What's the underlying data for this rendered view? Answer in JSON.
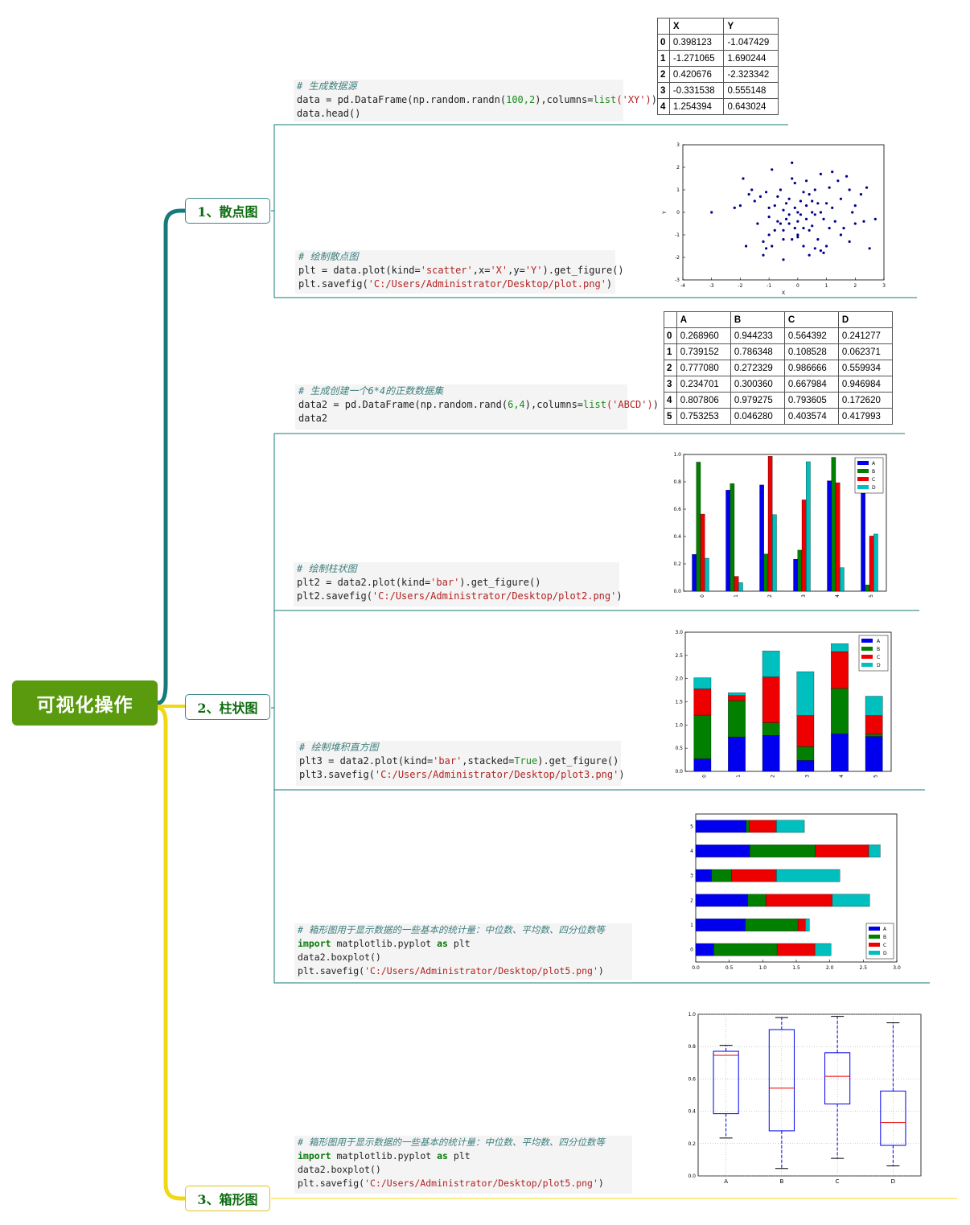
{
  "root": {
    "label": "可视化操作"
  },
  "branches": [
    {
      "label": "1、散点图"
    },
    {
      "label": "2、柱状图"
    },
    {
      "label": "3、箱形图"
    }
  ],
  "code": {
    "gen_xy": {
      "comment": "# 生成数据源",
      "line1_pre": "data = pd.DataFrame(np.random.randn(",
      "line1_n": "100,2",
      "line1_mid": "),columns=",
      "line1_kw": "list",
      "line1_s": "('XY')",
      "line1_end": ")",
      "line2": "data.head()"
    },
    "scatter": {
      "comment": "# 绘制散点图",
      "l1_pre": "plt = data.plot(kind=",
      "l1_s1": "'scatter'",
      "l1_mid1": ",x=",
      "l1_s2": "'X'",
      "l1_mid2": ",y=",
      "l1_s3": "'Y'",
      "l1_end": ").get_figure()",
      "l2_pre": "plt.savefig(",
      "l2_s": "'C:/Users/Administrator/Desktop/plot.png'",
      "l2_end": ")"
    },
    "gen_abcd": {
      "comment": "# 生成创建一个6*4的正数数据集",
      "l1_pre": "data2 = pd.DataFrame(np.random.rand(",
      "l1_n": "6,4",
      "l1_mid": "),columns=",
      "l1_kw": "list",
      "l1_s": "('ABCD')",
      "l1_end": ")",
      "l2": "data2"
    },
    "bar": {
      "comment": "# 绘制柱状图",
      "l1_pre": "plt2 = data2.plot(kind=",
      "l1_s": "'bar'",
      "l1_end": ").get_figure()",
      "l2_pre": "plt2.savefig(",
      "l2_s": "'C:/Users/Administrator/Desktop/plot2.png'",
      "l2_end": ")"
    },
    "stacked": {
      "comment": "# 绘制堆积直方图",
      "l1_pre": "plt3 = data2.plot(kind=",
      "l1_s": "'bar'",
      "l1_mid": ",stacked=",
      "l1_kw": "True",
      "l1_end": ").get_figure()",
      "l2_pre": "plt3.savefig(",
      "l2_s": "'C:/Users/Administrator/Desktop/plot3.png'",
      "l2_end": ")"
    },
    "box1": {
      "comment": "# 箱形图用于显示数据的一些基本的统计量：中位数、平均数、四分位数等",
      "l1_kw1": "import",
      "l1_mid": " matplotlib.pyplot ",
      "l1_kw2": "as",
      "l1_end": " plt",
      "l2": "data2.boxplot()",
      "l3_pre": "plt.savefig(",
      "l3_s": "'C:/Users/Administrator/Desktop/plot5.png'",
      "l3_end": ")"
    },
    "box2": {
      "comment": "# 箱形图用于显示数据的一些基本的统计量：中位数、平均数、四分位数等",
      "l1_kw1": "import",
      "l1_mid": " matplotlib.pyplot ",
      "l1_kw2": "as",
      "l1_end": " plt",
      "l2": "data2.boxplot()",
      "l3_pre": "plt.savefig(",
      "l3_s": "'C:/Users/Administrator/Desktop/plot5.png'",
      "l3_end": ")"
    }
  },
  "tables": {
    "xy": {
      "columns": [
        "X",
        "Y"
      ],
      "rows": [
        [
          "0",
          "0.398123",
          "-1.047429"
        ],
        [
          "1",
          "-1.271065",
          "1.690244"
        ],
        [
          "2",
          "0.420676",
          "-2.323342"
        ],
        [
          "3",
          "-0.331538",
          "0.555148"
        ],
        [
          "4",
          "1.254394",
          "0.643024"
        ]
      ]
    },
    "abcd": {
      "columns": [
        "A",
        "B",
        "C",
        "D"
      ],
      "rows": [
        [
          "0",
          "0.268960",
          "0.944233",
          "0.564392",
          "0.241277"
        ],
        [
          "1",
          "0.739152",
          "0.786348",
          "0.108528",
          "0.062371"
        ],
        [
          "2",
          "0.777080",
          "0.272329",
          "0.986666",
          "0.559934"
        ],
        [
          "3",
          "0.234701",
          "0.300360",
          "0.667984",
          "0.946984"
        ],
        [
          "4",
          "0.807806",
          "0.979275",
          "0.793605",
          "0.172620"
        ],
        [
          "5",
          "0.753253",
          "0.046280",
          "0.403574",
          "0.417993"
        ]
      ]
    }
  },
  "colors": {
    "A": "#0000ee",
    "B": "#007f00",
    "C": "#ee0000",
    "D": "#00bfbf",
    "teal_line": "#177a7a",
    "yellow_line": "#f0d816",
    "root_bg": "#5a9a0e"
  },
  "chart_data": [
    {
      "type": "scatter",
      "xlabel": "X",
      "ylabel": "Y",
      "xlim": [
        -4,
        3
      ],
      "ylim": [
        -3,
        3
      ],
      "xticks": [
        "-4",
        "-3",
        "-2",
        "-1",
        "0",
        "1",
        "2",
        "3"
      ],
      "yticks": [
        "-3",
        "-2",
        "-1",
        "0",
        "1",
        "2",
        "3"
      ],
      "points": [
        [
          -3.0,
          0.0
        ],
        [
          -2.2,
          0.2
        ],
        [
          -2.0,
          0.3
        ],
        [
          -1.9,
          1.5
        ],
        [
          -1.8,
          -1.5
        ],
        [
          -1.7,
          0.8
        ],
        [
          -1.6,
          1.0
        ],
        [
          -1.5,
          0.5
        ],
        [
          -1.4,
          -0.5
        ],
        [
          -1.3,
          0.7
        ],
        [
          -1.2,
          -1.3
        ],
        [
          -1.2,
          -1.9
        ],
        [
          -1.1,
          0.9
        ],
        [
          -1.1,
          -1.6
        ],
        [
          -1.0,
          -0.2
        ],
        [
          -1.0,
          0.2
        ],
        [
          -1.0,
          -1.0
        ],
        [
          -0.9,
          1.9
        ],
        [
          -0.9,
          -1.5
        ],
        [
          -0.8,
          0.3
        ],
        [
          -0.8,
          -0.8
        ],
        [
          -0.7,
          -0.4
        ],
        [
          -0.7,
          0.7
        ],
        [
          -0.6,
          -0.5
        ],
        [
          -0.6,
          1.0
        ],
        [
          -0.5,
          -0.8
        ],
        [
          -0.5,
          0.1
        ],
        [
          -0.5,
          -1.2
        ],
        [
          -0.5,
          -2.1
        ],
        [
          -0.4,
          -0.3
        ],
        [
          -0.4,
          0.4
        ],
        [
          -0.3,
          -0.1
        ],
        [
          -0.3,
          -0.5
        ],
        [
          -0.3,
          0.6
        ],
        [
          -0.2,
          1.5
        ],
        [
          -0.2,
          -1.2
        ],
        [
          -0.2,
          2.2
        ],
        [
          -0.1,
          -0.7
        ],
        [
          -0.1,
          0.2
        ],
        [
          -0.1,
          1.3
        ],
        [
          0.0,
          -1.0
        ],
        [
          0.0,
          0.0
        ],
        [
          0.0,
          -0.4
        ],
        [
          0.0,
          -1.1
        ],
        [
          0.1,
          0.5
        ],
        [
          0.1,
          -0.1
        ],
        [
          0.2,
          -0.7
        ],
        [
          0.2,
          0.9
        ],
        [
          0.2,
          -1.5
        ],
        [
          0.3,
          0.3
        ],
        [
          0.3,
          -0.3
        ],
        [
          0.3,
          1.4
        ],
        [
          0.4,
          -0.8
        ],
        [
          0.4,
          0.8
        ],
        [
          0.4,
          -1.9
        ],
        [
          0.5,
          0.0
        ],
        [
          0.5,
          0.5
        ],
        [
          0.5,
          -0.6
        ],
        [
          0.6,
          -1.6
        ],
        [
          0.6,
          1.0
        ],
        [
          0.6,
          -0.1
        ],
        [
          0.7,
          -1.2
        ],
        [
          0.7,
          0.4
        ],
        [
          0.8,
          0.0
        ],
        [
          0.8,
          -1.7
        ],
        [
          0.8,
          1.7
        ],
        [
          0.9,
          -0.3
        ],
        [
          0.9,
          -1.8
        ],
        [
          1.0,
          0.4
        ],
        [
          1.0,
          -1.5
        ],
        [
          1.1,
          1.1
        ],
        [
          1.1,
          -0.7
        ],
        [
          1.2,
          0.2
        ],
        [
          1.2,
          1.8
        ],
        [
          1.3,
          -0.4
        ],
        [
          1.4,
          1.4
        ],
        [
          1.5,
          0.6
        ],
        [
          1.5,
          -1.0
        ],
        [
          1.6,
          -0.7
        ],
        [
          1.7,
          1.6
        ],
        [
          1.8,
          1.0
        ],
        [
          1.8,
          -1.3
        ],
        [
          1.9,
          0.0
        ],
        [
          2.0,
          0.3
        ],
        [
          2.0,
          -0.5
        ],
        [
          2.2,
          0.8
        ],
        [
          2.3,
          -0.4
        ],
        [
          2.4,
          1.1
        ],
        [
          2.5,
          -1.6
        ],
        [
          2.7,
          -0.3
        ]
      ]
    },
    {
      "type": "bar",
      "categories": [
        "0",
        "1",
        "2",
        "3",
        "4",
        "5"
      ],
      "ylim": [
        0,
        1.0
      ],
      "yticks": [
        "0.0",
        "0.2",
        "0.4",
        "0.6",
        "0.8",
        "1.0"
      ],
      "legend": "top-right",
      "series": [
        {
          "name": "A",
          "values": [
            0.26896,
            0.739152,
            0.77708,
            0.234701,
            0.807806,
            0.753253
          ]
        },
        {
          "name": "B",
          "values": [
            0.944233,
            0.786348,
            0.272329,
            0.30036,
            0.979275,
            0.04628
          ]
        },
        {
          "name": "C",
          "values": [
            0.564392,
            0.108528,
            0.986666,
            0.667984,
            0.793605,
            0.403574
          ]
        },
        {
          "name": "D",
          "values": [
            0.241277,
            0.062371,
            0.559934,
            0.946984,
            0.17262,
            0.417993
          ]
        }
      ]
    },
    {
      "type": "bar",
      "stacked": true,
      "categories": [
        "0",
        "1",
        "2",
        "3",
        "4",
        "5"
      ],
      "ylim": [
        0,
        3.0
      ],
      "yticks": [
        "0.0",
        "0.5",
        "1.0",
        "1.5",
        "2.0",
        "2.5",
        "3.0"
      ],
      "legend": "top-right",
      "series": [
        {
          "name": "A",
          "values": [
            0.26896,
            0.739152,
            0.77708,
            0.234701,
            0.807806,
            0.753253
          ]
        },
        {
          "name": "B",
          "values": [
            0.944233,
            0.786348,
            0.272329,
            0.30036,
            0.979275,
            0.04628
          ]
        },
        {
          "name": "C",
          "values": [
            0.564392,
            0.108528,
            0.986666,
            0.667984,
            0.793605,
            0.403574
          ]
        },
        {
          "name": "D",
          "values": [
            0.241277,
            0.062371,
            0.559934,
            0.946984,
            0.17262,
            0.417993
          ]
        }
      ]
    },
    {
      "type": "bar",
      "orientation": "horizontal",
      "stacked": true,
      "categories": [
        "0",
        "1",
        "2",
        "3",
        "4",
        "5"
      ],
      "xlim": [
        0,
        3.0
      ],
      "xticks": [
        "0.0",
        "0.5",
        "1.0",
        "1.5",
        "2.0",
        "2.5",
        "3.0"
      ],
      "legend": "bottom-right",
      "series": [
        {
          "name": "A",
          "values": [
            0.26896,
            0.739152,
            0.77708,
            0.234701,
            0.807806,
            0.753253
          ]
        },
        {
          "name": "B",
          "values": [
            0.944233,
            0.786348,
            0.272329,
            0.30036,
            0.979275,
            0.04628
          ]
        },
        {
          "name": "C",
          "values": [
            0.564392,
            0.108528,
            0.986666,
            0.667984,
            0.793605,
            0.403574
          ]
        },
        {
          "name": "D",
          "values": [
            0.241277,
            0.062371,
            0.559934,
            0.946984,
            0.17262,
            0.417993
          ]
        }
      ]
    },
    {
      "type": "box",
      "categories": [
        "A",
        "B",
        "C",
        "D"
      ],
      "ylim": [
        0,
        1.0
      ],
      "yticks": [
        "0.0",
        "0.2",
        "0.4",
        "0.6",
        "0.8",
        "1.0"
      ],
      "grid": true,
      "boxes": [
        {
          "name": "A",
          "min": 0.234701,
          "q1": 0.385,
          "median": 0.746,
          "q3": 0.771,
          "max": 0.807806
        },
        {
          "name": "B",
          "min": 0.04628,
          "q1": 0.279,
          "median": 0.543,
          "q3": 0.905,
          "max": 0.979275
        },
        {
          "name": "C",
          "min": 0.108528,
          "q1": 0.445,
          "median": 0.616,
          "q3": 0.762,
          "max": 0.986666
        },
        {
          "name": "D",
          "min": 0.062371,
          "q1": 0.189,
          "median": 0.33,
          "q3": 0.525,
          "max": 0.946984
        }
      ]
    }
  ]
}
